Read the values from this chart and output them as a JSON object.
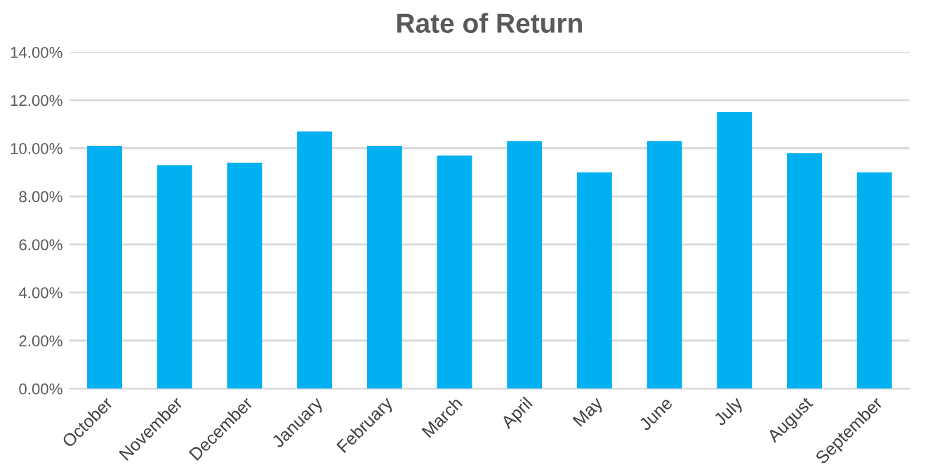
{
  "chart_data": {
    "type": "bar",
    "title": "Rate of Return",
    "categories": [
      "October",
      "November",
      "December",
      "January",
      "February",
      "March",
      "April",
      "May",
      "June",
      "July",
      "August",
      "September"
    ],
    "values": [
      10.1,
      9.3,
      9.4,
      10.7,
      10.1,
      9.7,
      10.3,
      9.0,
      10.3,
      11.5,
      9.8,
      9.0
    ],
    "color": "#00b0f0",
    "ylim": [
      0,
      14
    ],
    "yticks": [
      {
        "value": 0,
        "label": "0.00%"
      },
      {
        "value": 2,
        "label": "2.00%"
      },
      {
        "value": 4,
        "label": "4.00%"
      },
      {
        "value": 6,
        "label": "6.00%"
      },
      {
        "value": 8,
        "label": "8.00%"
      },
      {
        "value": 10,
        "label": "10.00%"
      },
      {
        "value": 12,
        "label": "12.00%"
      },
      {
        "value": 14,
        "label": "14.00%"
      }
    ],
    "grid": "y",
    "legend": false
  }
}
